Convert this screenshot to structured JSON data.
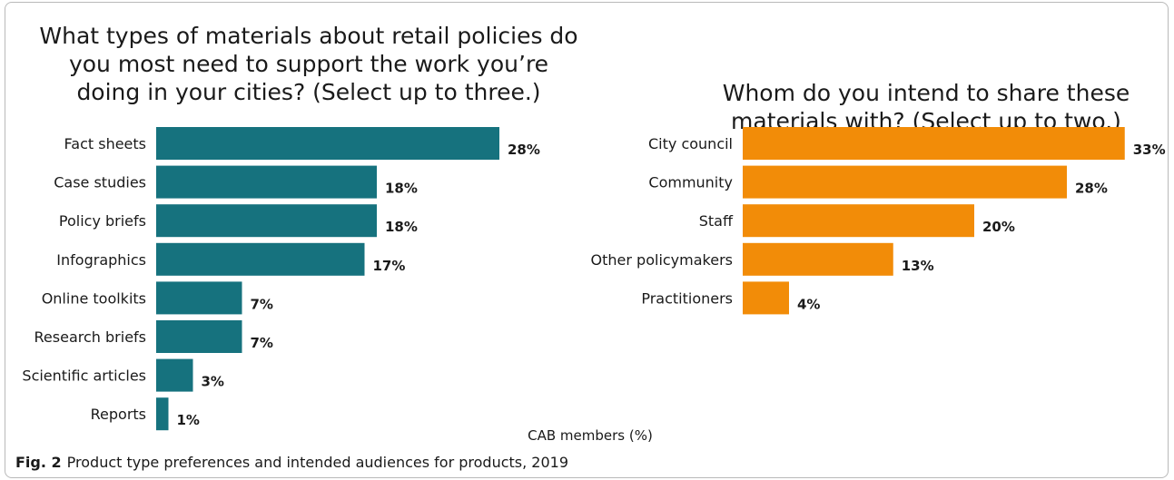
{
  "figure": {
    "label": "Fig. 2",
    "caption": "Product type preferences and intended audiences for products, 2019",
    "shared_axis_label": "CAB members (%)"
  },
  "chart_data": [
    {
      "type": "bar",
      "orientation": "horizontal",
      "title": "What types of materials about retail policies do you most need to support the work you’re doing in your cities? (Select up to three.)",
      "title_lines": [
        "What types of materials about retail policies do",
        "you most need to support the work you’re",
        "doing in your cities? (Select up to three.)"
      ],
      "categories": [
        "Fact sheets",
        "Case studies",
        "Policy briefs",
        "Infographics",
        "Online toolkits",
        "Research briefs",
        "Scientific articles",
        "Reports"
      ],
      "values": [
        28,
        18,
        18,
        17,
        7,
        7,
        3,
        1
      ],
      "value_labels": [
        "28%",
        "18%",
        "18%",
        "17%",
        "7%",
        "7%",
        "3%",
        "1%"
      ],
      "unit": "%",
      "color": "#16727e",
      "xlabel": "",
      "ylabel": "",
      "grid": false
    },
    {
      "type": "bar",
      "orientation": "horizontal",
      "title": "Whom do you intend to share these materials with? (Select up to two.)",
      "title_lines": [
        "Whom do you intend to share these",
        "materials with? (Select up to two.)"
      ],
      "categories": [
        "City council",
        "Community",
        "Staff",
        "Other policymakers",
        "Practitioners"
      ],
      "values": [
        33,
        28,
        20,
        13,
        4
      ],
      "value_labels": [
        "33%",
        "28%",
        "20%",
        "13%",
        "4%"
      ],
      "unit": "%",
      "color": "#f28c08",
      "xlabel": "",
      "ylabel": "",
      "grid": false
    }
  ]
}
